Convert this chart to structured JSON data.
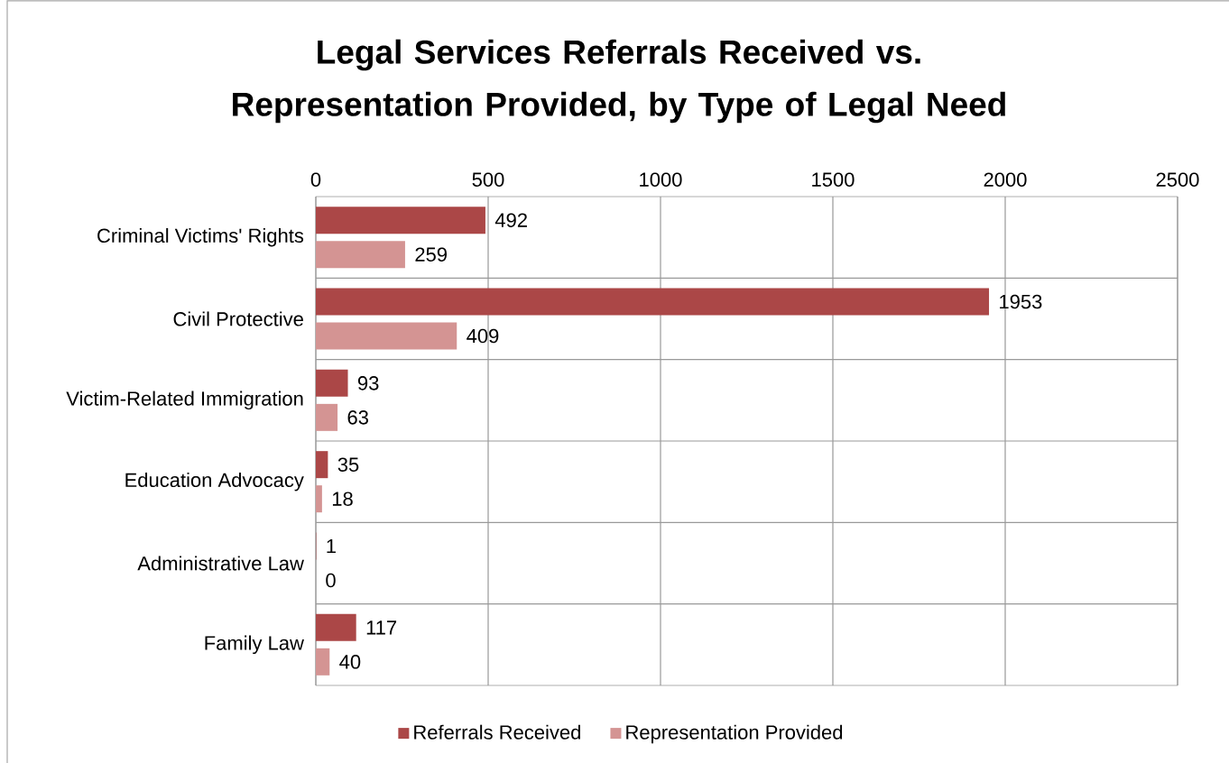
{
  "chart_data": {
    "type": "bar",
    "orientation": "horizontal",
    "title": "Legal Services Referrals Received vs. Representation Provided, by Type of Legal Need",
    "categories": [
      "Criminal Victims' Rights",
      "Civil Protective",
      "Victim-Related Immigration",
      "Education Advocacy",
      "Administrative Law",
      "Family Law"
    ],
    "series": [
      {
        "name": "Referrals Received",
        "color": "#ab4747",
        "values": [
          492,
          1953,
          93,
          35,
          1,
          117
        ]
      },
      {
        "name": "Representation Provided",
        "color": "#d49493",
        "values": [
          259,
          409,
          63,
          18,
          0,
          40
        ]
      }
    ],
    "xlim": [
      0,
      2500
    ],
    "xticks": [
      0,
      500,
      1000,
      1500,
      2000,
      2500
    ],
    "grid": true,
    "legend": "bottom",
    "data_labels": true
  }
}
